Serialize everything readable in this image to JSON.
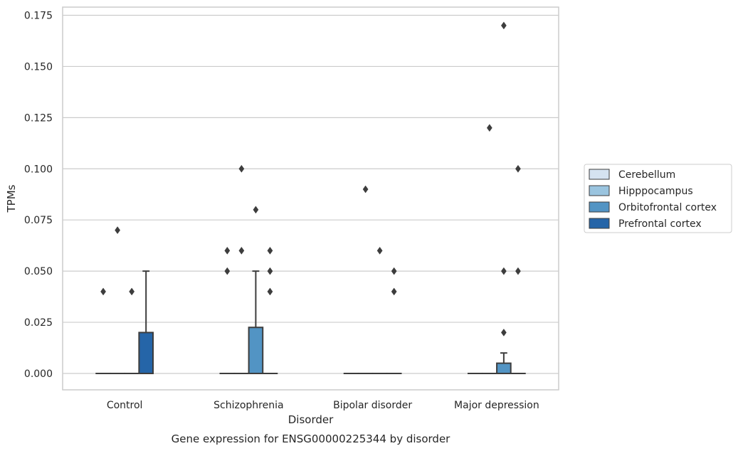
{
  "chart_data": {
    "type": "boxplot",
    "title": "Gene expression for ENSG00000225344 by disorder",
    "xlabel": "Disorder",
    "ylabel": "TPMs",
    "ylim": [
      -0.008,
      0.179
    ],
    "yticks": [
      "0.000",
      "0.025",
      "0.050",
      "0.075",
      "0.100",
      "0.125",
      "0.150",
      "0.175"
    ],
    "categories": [
      "Control",
      "Schizophrenia",
      "Bipolar disorder",
      "Major depression"
    ],
    "grid": true,
    "legend_position": "right",
    "series": [
      {
        "name": "Cerebellum",
        "color": "#d5e3f1",
        "boxes": [
          {
            "q1": 0,
            "median": 0,
            "q3": 0,
            "whisker_low": 0,
            "whisker_high": 0,
            "outliers": [
              0.04
            ]
          },
          {
            "q1": 0,
            "median": 0,
            "q3": 0,
            "whisker_low": 0,
            "whisker_high": 0,
            "outliers": [
              0.05,
              0.06
            ]
          },
          {
            "q1": 0,
            "median": 0,
            "q3": 0,
            "whisker_low": 0,
            "whisker_high": 0,
            "outliers": []
          },
          {
            "q1": 0,
            "median": 0,
            "q3": 0,
            "whisker_low": 0,
            "whisker_high": 0,
            "outliers": []
          }
        ]
      },
      {
        "name": "Hipppocampus",
        "color": "#9ac4df",
        "boxes": [
          {
            "q1": 0,
            "median": 0,
            "q3": 0,
            "whisker_low": 0,
            "whisker_high": 0,
            "outliers": [
              0.07
            ]
          },
          {
            "q1": 0,
            "median": 0,
            "q3": 0,
            "whisker_low": 0,
            "whisker_high": 0,
            "outliers": [
              0.06,
              0.1
            ]
          },
          {
            "q1": 0,
            "median": 0,
            "q3": 0,
            "whisker_low": 0,
            "whisker_high": 0,
            "outliers": [
              0.09
            ]
          },
          {
            "q1": 0,
            "median": 0,
            "q3": 0,
            "whisker_low": 0,
            "whisker_high": 0,
            "outliers": [
              0.12
            ]
          }
        ]
      },
      {
        "name": "Orbitofrontal cortex",
        "color": "#5294c4",
        "boxes": [
          {
            "q1": 0,
            "median": 0,
            "q3": 0,
            "whisker_low": 0,
            "whisker_high": 0,
            "outliers": [
              0.04
            ]
          },
          {
            "q1": 0,
            "median": 0,
            "q3": 0.0225,
            "whisker_low": 0,
            "whisker_high": 0.05,
            "outliers": [
              0.08
            ]
          },
          {
            "q1": 0,
            "median": 0,
            "q3": 0,
            "whisker_low": 0,
            "whisker_high": 0,
            "outliers": [
              0.06
            ]
          },
          {
            "q1": 0,
            "median": 0,
            "q3": 0.005,
            "whisker_low": 0,
            "whisker_high": 0.01,
            "outliers": [
              0.02,
              0.05,
              0.17
            ]
          }
        ]
      },
      {
        "name": "Prefrontal cortex",
        "color": "#2565a8",
        "boxes": [
          {
            "q1": 0,
            "median": 0,
            "q3": 0.02,
            "whisker_low": 0,
            "whisker_high": 0.05,
            "outliers": []
          },
          {
            "q1": 0,
            "median": 0,
            "q3": 0,
            "whisker_low": 0,
            "whisker_high": 0,
            "outliers": [
              0.04,
              0.05,
              0.06
            ]
          },
          {
            "q1": 0,
            "median": 0,
            "q3": 0,
            "whisker_low": 0,
            "whisker_high": 0,
            "outliers": [
              0.04,
              0.05
            ]
          },
          {
            "q1": 0,
            "median": 0,
            "q3": 0,
            "whisker_low": 0,
            "whisker_high": 0,
            "outliers": [
              0.05,
              0.1
            ]
          }
        ]
      }
    ]
  }
}
